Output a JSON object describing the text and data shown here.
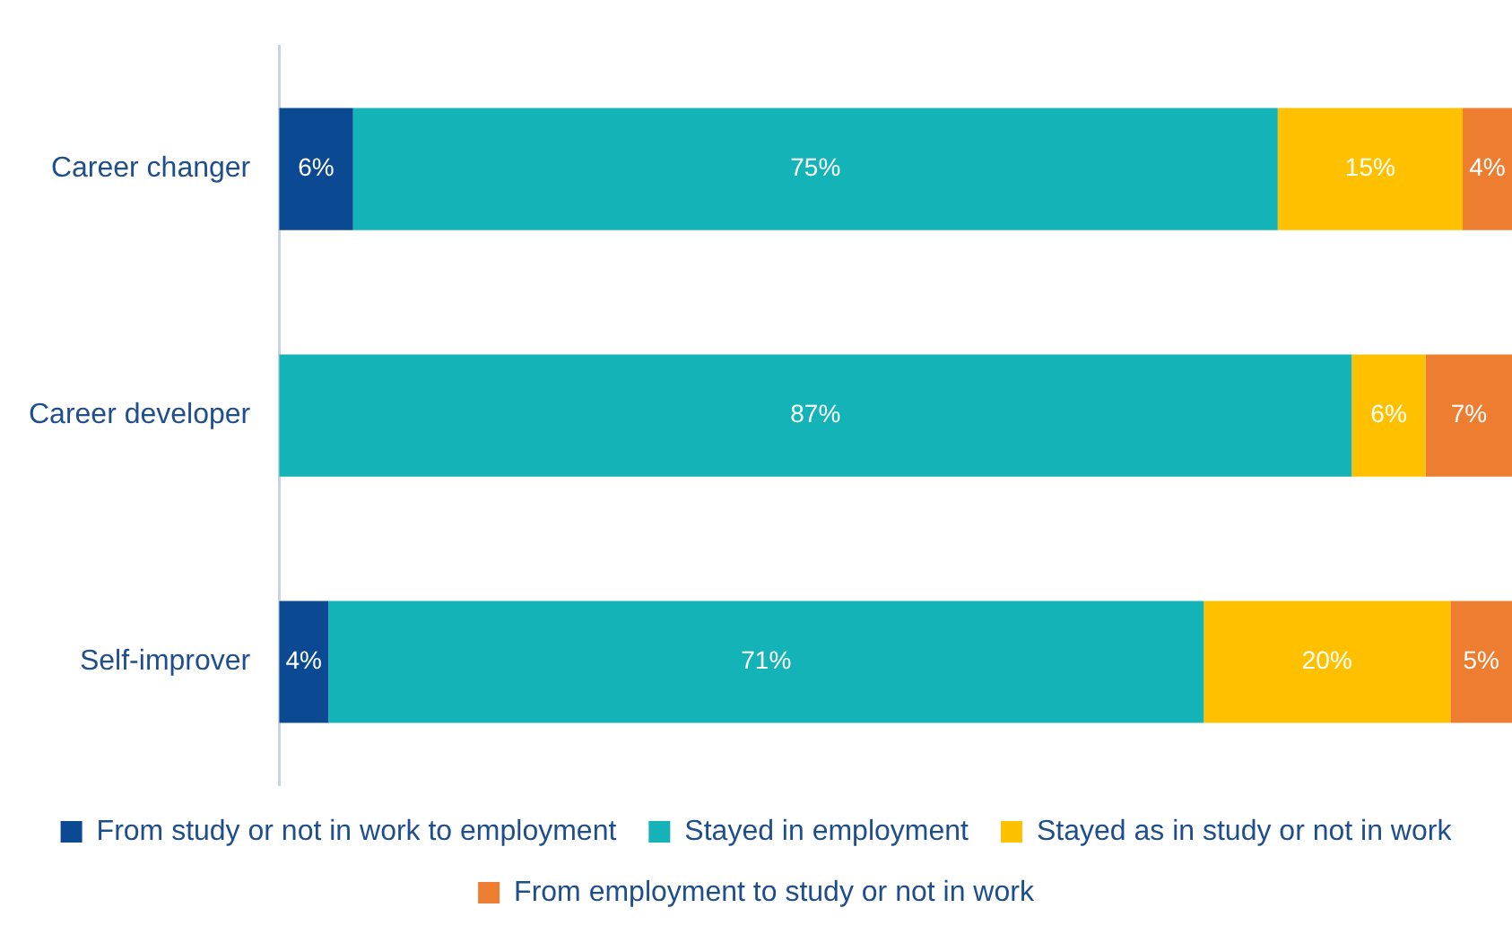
{
  "chart_data": {
    "type": "bar",
    "orientation": "horizontal",
    "stacked": true,
    "categories": [
      "Career changer",
      "Career developer",
      "Self-improver"
    ],
    "series": [
      {
        "name": "From study or not in work to employment",
        "color": "#0b4a92",
        "values": [
          6,
          null,
          4
        ],
        "value_labels": [
          "6%",
          null,
          "4%"
        ]
      },
      {
        "name": "Stayed in employment",
        "color": "#13b3b8",
        "values": [
          75,
          87,
          71
        ],
        "value_labels": [
          "75%",
          "87%",
          "71%"
        ]
      },
      {
        "name": "Stayed as in study or not in work",
        "color": "#ffc000",
        "values": [
          15,
          6,
          20
        ],
        "value_labels": [
          "15%",
          "6%",
          "20%"
        ]
      },
      {
        "name": "From employment to study or not in work",
        "color": "#ed7d31",
        "values": [
          4,
          7,
          5
        ],
        "value_labels": [
          "4%",
          "7%",
          "5%"
        ]
      }
    ],
    "xlim": [
      0,
      100
    ],
    "tick_labels": "y",
    "legend": "bottom"
  }
}
